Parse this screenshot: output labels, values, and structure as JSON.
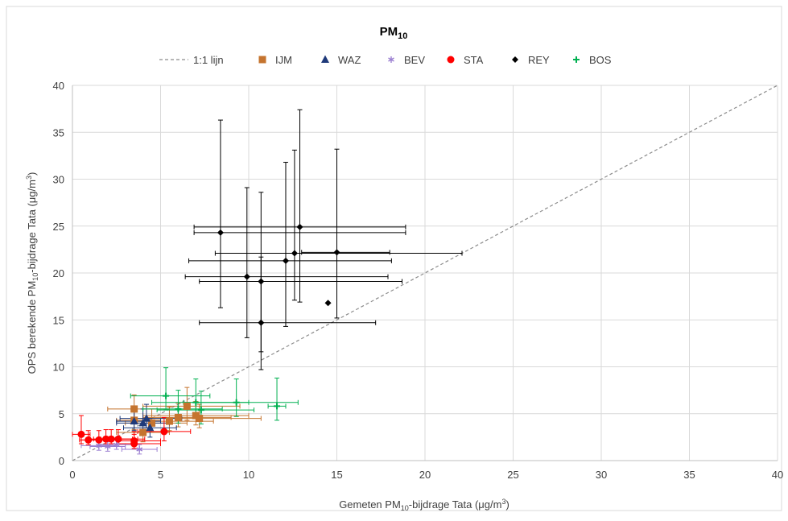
{
  "chart_data": {
    "type": "scatter",
    "title_main": "PM",
    "title_sub": "10",
    "xlabel": {
      "pre": "Gemeten PM",
      "sub": "10",
      "mid": "-bijdrage Tata (μg/m",
      "sup": "3",
      "post": ")"
    },
    "ylabel": {
      "pre": "OPS berekende PM",
      "sub": "10",
      "mid": "-bijdrage Tata (μg/m",
      "sup": "3",
      "post": ")"
    },
    "xlim": [
      0,
      40
    ],
    "ylim": [
      0,
      40
    ],
    "xticks": [
      "0",
      "5",
      "10",
      "15",
      "20",
      "25",
      "30",
      "35",
      "40"
    ],
    "yticks": [
      "0",
      "5",
      "10",
      "15",
      "20",
      "25",
      "30",
      "35",
      "40"
    ],
    "grid": true,
    "legend_position": "top",
    "reference_line": {
      "name": "1:1 lijn",
      "x": [
        0,
        40
      ],
      "y": [
        0,
        40
      ],
      "color": "#8c8c8c"
    },
    "series": [
      {
        "name": "IJM",
        "marker": "square",
        "color": "#c5742f",
        "points": [
          {
            "x": 3.5,
            "y": 5.5,
            "xerr": [
              1.5,
              2.0
            ],
            "yerr": [
              1.5,
              1.5
            ]
          },
          {
            "x": 3.5,
            "y": 4.3,
            "xerr": [
              1.0,
              1.5
            ],
            "yerr": [
              1.0,
              1.5
            ]
          },
          {
            "x": 4.0,
            "y": 3.0,
            "xerr": [
              1.5,
              1.5
            ],
            "yerr": [
              1.0,
              1.5
            ]
          },
          {
            "x": 4.5,
            "y": 4.0,
            "xerr": [
              1.5,
              2.0
            ],
            "yerr": [
              1.0,
              1.5
            ]
          },
          {
            "x": 5.5,
            "y": 4.2,
            "xerr": [
              2.0,
              2.5
            ],
            "yerr": [
              1.0,
              1.5
            ]
          },
          {
            "x": 6.0,
            "y": 4.6,
            "xerr": [
              2.0,
              3.0
            ],
            "yerr": [
              1.0,
              1.5
            ]
          },
          {
            "x": 6.5,
            "y": 5.8,
            "xerr": [
              2.5,
              3.0
            ],
            "yerr": [
              1.5,
              2.0
            ]
          },
          {
            "x": 7.0,
            "y": 4.8,
            "xerr": [
              3.0,
              3.0
            ],
            "yerr": [
              1.0,
              1.5
            ]
          },
          {
            "x": 7.2,
            "y": 4.5,
            "xerr": [
              3.0,
              3.5
            ],
            "yerr": [
              1.0,
              1.5
            ]
          }
        ]
      },
      {
        "name": "WAZ",
        "marker": "triangle",
        "color": "#1f3a7a",
        "points": [
          {
            "x": 3.5,
            "y": 4.2,
            "xerr": [
              1.0,
              1.5
            ],
            "yerr": [
              1.0,
              1.5
            ]
          },
          {
            "x": 4.0,
            "y": 4.0,
            "xerr": [
              1.5,
              1.5
            ],
            "yerr": [
              1.0,
              1.5
            ]
          },
          {
            "x": 4.2,
            "y": 4.5,
            "xerr": [
              1.5,
              2.0
            ],
            "yerr": [
              1.0,
              1.5
            ]
          },
          {
            "x": 4.4,
            "y": 3.5,
            "xerr": [
              1.5,
              1.5
            ],
            "yerr": [
              1.0,
              1.0
            ]
          }
        ]
      },
      {
        "name": "BEV",
        "marker": "asterisk",
        "color": "#9b7fd1",
        "points": [
          {
            "x": 1.5,
            "y": 1.6,
            "xerr": [
              1.0,
              1.0
            ],
            "yerr": [
              0.5,
              0.5
            ]
          },
          {
            "x": 2.0,
            "y": 1.5,
            "xerr": [
              1.0,
              1.0
            ],
            "yerr": [
              0.5,
              0.5
            ]
          },
          {
            "x": 2.5,
            "y": 1.7,
            "xerr": [
              1.0,
              1.0
            ],
            "yerr": [
              0.5,
              0.5
            ]
          },
          {
            "x": 3.8,
            "y": 1.2,
            "xerr": [
              1.0,
              1.0
            ],
            "yerr": [
              0.5,
              0.5
            ]
          }
        ]
      },
      {
        "name": "STA",
        "marker": "circle",
        "color": "#ff0000",
        "points": [
          {
            "x": 0.5,
            "y": 2.8,
            "xerr": [
              0.5,
              0.5
            ],
            "yerr": [
              1.0,
              2.0
            ]
          },
          {
            "x": 0.9,
            "y": 2.2,
            "xerr": [
              0.5,
              1.0
            ],
            "yerr": [
              0.5,
              1.0
            ]
          },
          {
            "x": 1.5,
            "y": 2.2,
            "xerr": [
              1.0,
              1.0
            ],
            "yerr": [
              0.5,
              1.0
            ]
          },
          {
            "x": 1.9,
            "y": 2.3,
            "xerr": [
              1.0,
              1.5
            ],
            "yerr": [
              0.5,
              1.0
            ]
          },
          {
            "x": 2.2,
            "y": 2.3,
            "xerr": [
              1.0,
              1.5
            ],
            "yerr": [
              0.5,
              1.0
            ]
          },
          {
            "x": 2.6,
            "y": 2.3,
            "xerr": [
              1.0,
              1.5
            ],
            "yerr": [
              0.5,
              1.0
            ]
          },
          {
            "x": 3.5,
            "y": 2.1,
            "xerr": [
              1.0,
              1.5
            ],
            "yerr": [
              0.5,
              1.0
            ]
          },
          {
            "x": 3.5,
            "y": 1.8,
            "xerr": [
              1.0,
              1.5
            ],
            "yerr": [
              0.5,
              1.0
            ]
          },
          {
            "x": 5.2,
            "y": 3.1,
            "xerr": [
              1.5,
              1.5
            ],
            "yerr": [
              1.0,
              1.5
            ]
          }
        ]
      },
      {
        "name": "REY",
        "marker": "diamond",
        "color": "#000000",
        "points": [
          {
            "x": 8.4,
            "y": 24.3,
            "xerr": [
              1.5,
              10.5
            ],
            "yerr": [
              8.0,
              12.0
            ]
          },
          {
            "x": 9.9,
            "y": 19.6,
            "xerr": [
              3.5,
              8.0
            ],
            "yerr": [
              6.5,
              9.5
            ]
          },
          {
            "x": 10.7,
            "y": 19.1,
            "xerr": [
              3.5,
              8.0
            ],
            "yerr": [
              7.5,
              9.5
            ]
          },
          {
            "x": 10.7,
            "y": 14.7,
            "xerr": [
              3.5,
              6.5
            ],
            "yerr": [
              5.0,
              7.0
            ]
          },
          {
            "x": 12.1,
            "y": 21.3,
            "xerr": [
              5.5,
              6.0
            ],
            "yerr": [
              7.0,
              10.5
            ]
          },
          {
            "x": 12.6,
            "y": 22.1,
            "xerr": [
              4.5,
              9.5
            ],
            "yerr": [
              5.0,
              11.0
            ]
          },
          {
            "x": 12.9,
            "y": 24.9,
            "xerr": [
              6.0,
              6.0
            ],
            "yerr": [
              8.0,
              12.5
            ]
          },
          {
            "x": 14.5,
            "y": 16.8,
            "xerr": [
              0,
              0
            ],
            "yerr": [
              0,
              0
            ]
          },
          {
            "x": 15.0,
            "y": 22.2,
            "xerr": [
              2.0,
              3.0
            ],
            "yerr": [
              7.0,
              11.0
            ]
          }
        ]
      },
      {
        "name": "BOS",
        "marker": "plus",
        "color": "#00b050",
        "points": [
          {
            "x": 5.3,
            "y": 6.9,
            "xerr": [
              2.0,
              2.5
            ],
            "yerr": [
              1.5,
              3.0
            ]
          },
          {
            "x": 6.0,
            "y": 5.5,
            "xerr": [
              2.0,
              2.5
            ],
            "yerr": [
              1.5,
              2.0
            ]
          },
          {
            "x": 7.0,
            "y": 6.2,
            "xerr": [
              2.5,
              3.0
            ],
            "yerr": [
              1.5,
              2.5
            ]
          },
          {
            "x": 7.3,
            "y": 5.4,
            "xerr": [
              2.5,
              3.0
            ],
            "yerr": [
              1.5,
              2.0
            ]
          },
          {
            "x": 9.3,
            "y": 6.2,
            "xerr": [
              3.0,
              3.5
            ],
            "yerr": [
              1.5,
              2.5
            ]
          },
          {
            "x": 11.6,
            "y": 5.8,
            "xerr": [
              0.5,
              0.5
            ],
            "yerr": [
              1.5,
              3.0
            ]
          }
        ]
      }
    ]
  }
}
